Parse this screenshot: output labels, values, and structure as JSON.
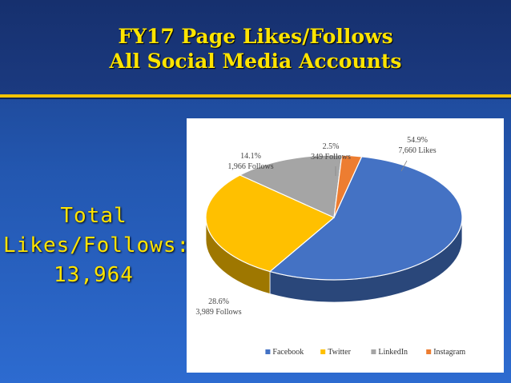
{
  "title": {
    "line1": "FY17 Page Likes/Follows",
    "line2": "All Social Media Accounts"
  },
  "total": {
    "line1": "Total",
    "line2": "Likes/Follows:",
    "line3": "13,964"
  },
  "colors": {
    "title_text": "#ffe400",
    "accent_stripe": "#f2c300",
    "background": "#2357b0"
  },
  "chart_data": {
    "type": "pie",
    "style": "3d",
    "title": "",
    "legend_position": "bottom",
    "series": [
      {
        "name": "Facebook",
        "value": 7660,
        "percent": "54.9%",
        "detail": "7,660 Likes",
        "color": "#4472c4"
      },
      {
        "name": "Twitter",
        "value": 3989,
        "percent": "28.6%",
        "detail": "3,989 Follows",
        "color": "#ffc000"
      },
      {
        "name": "LinkedIn",
        "value": 1966,
        "percent": "14.1%",
        "detail": "1,966 Follows",
        "color": "#a5a5a5"
      },
      {
        "name": "Instagram",
        "value": 349,
        "percent": "2.5%",
        "detail": "349 Follows",
        "color": "#ed7d31"
      }
    ]
  }
}
